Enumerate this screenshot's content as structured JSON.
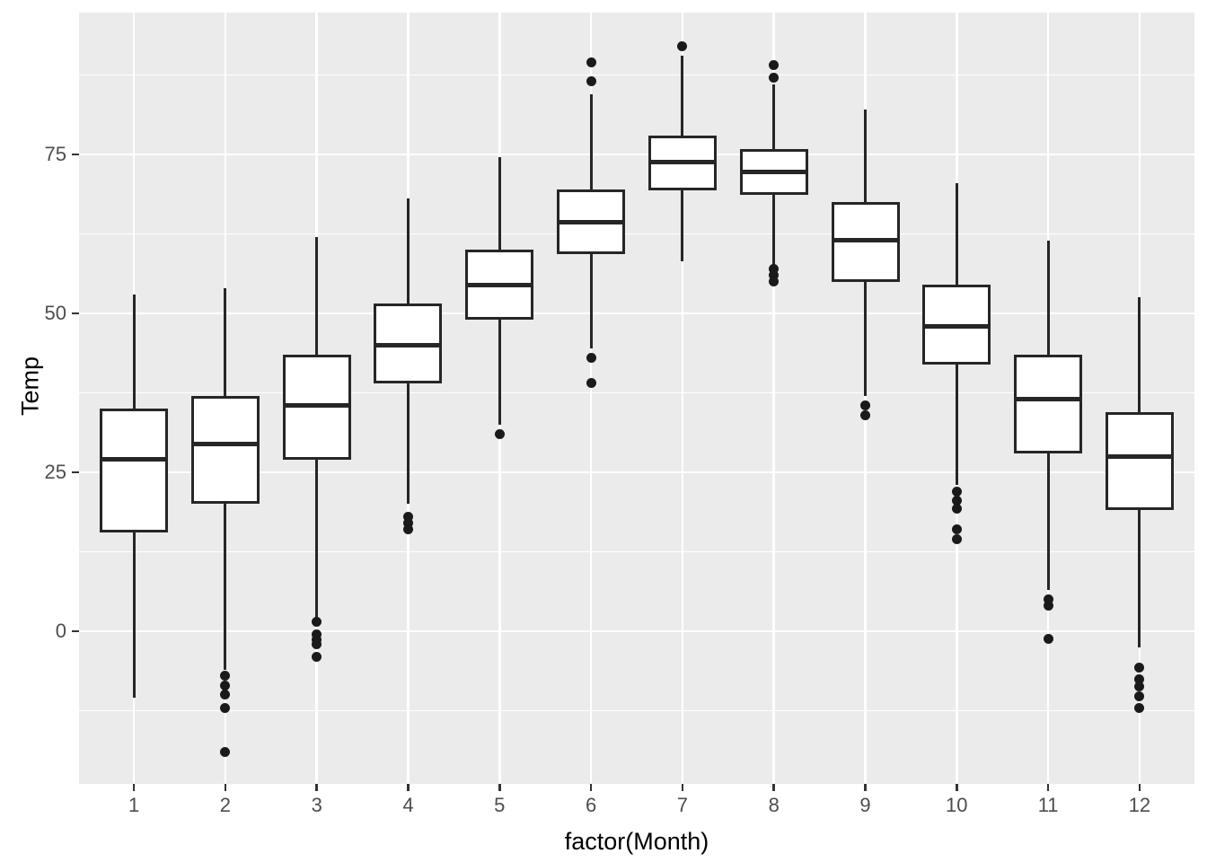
{
  "chart_data": {
    "type": "boxplot",
    "title": "",
    "xlabel": "factor(Month)",
    "ylabel": "Temp",
    "categories": [
      "1",
      "2",
      "3",
      "4",
      "5",
      "6",
      "7",
      "8",
      "9",
      "10",
      "11",
      "12"
    ],
    "y_ticks": [
      0,
      25,
      50,
      75
    ],
    "y_tick_labels": [
      "0",
      "25",
      "50",
      "75"
    ],
    "y_minor_ticks": [
      -12.5,
      12.5,
      37.5,
      62.5,
      87.5
    ],
    "ylim": [
      -24.0,
      97.3
    ],
    "grid": "major and minor horizontal white lines, vertical white line at each month center",
    "legend": "none",
    "series": [
      {
        "month": "1",
        "whisker_low": -10.5,
        "q1": 15.5,
        "median": 27.0,
        "q3": 35.0,
        "whisker_high": 53.0,
        "outliers": []
      },
      {
        "month": "2",
        "whisker_low": -6.0,
        "q1": 20.0,
        "median": 29.5,
        "q3": 37.0,
        "whisker_high": 54.0,
        "outliers": [
          -7.0,
          -8.5,
          -10.0,
          -12.0,
          -19.0
        ]
      },
      {
        "month": "3",
        "whisker_low": 2.0,
        "q1": 27.0,
        "median": 35.5,
        "q3": 43.5,
        "whisker_high": 62.0,
        "outliers": [
          1.5,
          -0.5,
          -1.3,
          -2.1,
          -4.0
        ]
      },
      {
        "month": "4",
        "whisker_low": 20.0,
        "q1": 39.0,
        "median": 45.0,
        "q3": 51.5,
        "whisker_high": 68.0,
        "outliers": [
          18.0,
          17.0,
          16.0
        ]
      },
      {
        "month": "5",
        "whisker_low": 32.5,
        "q1": 49.0,
        "median": 54.5,
        "q3": 60.0,
        "whisker_high": 74.5,
        "outliers": [
          31.0
        ]
      },
      {
        "month": "6",
        "whisker_low": 44.5,
        "q1": 59.3,
        "median": 64.3,
        "q3": 69.5,
        "whisker_high": 84.5,
        "outliers": [
          89.5,
          86.5,
          43.0,
          39.0
        ]
      },
      {
        "month": "7",
        "whisker_low": 58.2,
        "q1": 69.3,
        "median": 73.8,
        "q3": 78.0,
        "whisker_high": 90.5,
        "outliers": [
          92.0
        ]
      },
      {
        "month": "8",
        "whisker_low": 57.5,
        "q1": 68.6,
        "median": 72.3,
        "q3": 75.8,
        "whisker_high": 86.0,
        "outliers": [
          89.0,
          87.0,
          57.0,
          56.0,
          55.0
        ]
      },
      {
        "month": "9",
        "whisker_low": 37.0,
        "q1": 55.0,
        "median": 61.5,
        "q3": 67.5,
        "whisker_high": 82.0,
        "outliers": [
          35.5,
          34.0
        ]
      },
      {
        "month": "10",
        "whisker_low": 23.0,
        "q1": 42.0,
        "median": 48.0,
        "q3": 54.5,
        "whisker_high": 70.5,
        "outliers": [
          22.0,
          20.5,
          19.3,
          16.0,
          14.5
        ]
      },
      {
        "month": "11",
        "whisker_low": 6.5,
        "q1": 28.0,
        "median": 36.5,
        "q3": 43.5,
        "whisker_high": 61.5,
        "outliers": [
          5.0,
          4.0,
          -1.2
        ]
      },
      {
        "month": "12",
        "whisker_low": -2.5,
        "q1": 19.0,
        "median": 27.5,
        "q3": 34.5,
        "whisker_high": 52.5,
        "outliers": [
          -5.7,
          -7.5,
          -8.7,
          -10.3,
          -12.0
        ]
      }
    ]
  },
  "style": {
    "background": "#FFFFFF",
    "panel_bg": "#EBEBEB",
    "grid_color": "#FFFFFF",
    "box_stroke": "#262626",
    "box_fill": "#FFFFFF",
    "outlier_color": "#1A1A1A",
    "tick_label_color": "#4D4D4D",
    "axis_title_color": "#000000"
  }
}
